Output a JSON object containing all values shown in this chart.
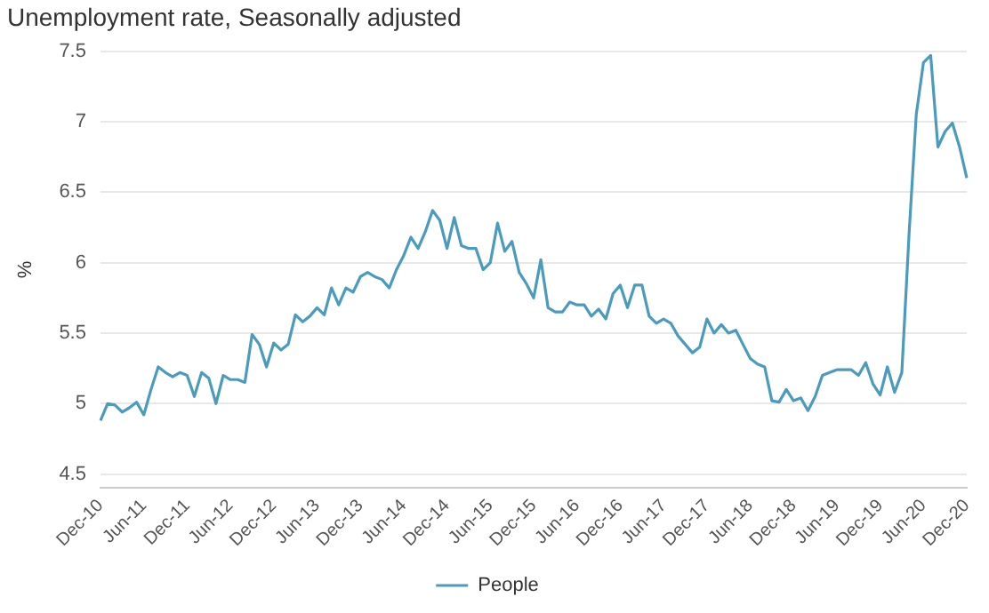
{
  "chart_data": {
    "type": "line",
    "title": "Unemployment rate, Seasonally adjusted",
    "ylabel": "%",
    "categories": [
      "Dec-10",
      null,
      null,
      null,
      null,
      null,
      "Jun-11",
      null,
      null,
      null,
      null,
      null,
      "Dec-11",
      null,
      null,
      null,
      null,
      null,
      "Jun-12",
      null,
      null,
      null,
      null,
      null,
      "Dec-12",
      null,
      null,
      null,
      null,
      null,
      "Jun-13",
      null,
      null,
      null,
      null,
      null,
      "Dec-13",
      null,
      null,
      null,
      null,
      null,
      "Jun-14",
      null,
      null,
      null,
      null,
      null,
      "Dec-14",
      null,
      null,
      null,
      null,
      null,
      "Jun-15",
      null,
      null,
      null,
      null,
      null,
      "Dec-15",
      null,
      null,
      null,
      null,
      null,
      "Jun-16",
      null,
      null,
      null,
      null,
      null,
      "Dec-16",
      null,
      null,
      null,
      null,
      null,
      "Jun-17",
      null,
      null,
      null,
      null,
      null,
      "Dec-17",
      null,
      null,
      null,
      null,
      null,
      "Jun-18",
      null,
      null,
      null,
      null,
      null,
      "Dec-18",
      null,
      null,
      null,
      null,
      null,
      "Jun-19",
      null,
      null,
      null,
      null,
      null,
      "Dec-19",
      null,
      null,
      null,
      null,
      null,
      "Jun-20",
      null,
      null,
      null,
      null,
      null,
      "Dec-20"
    ],
    "series": [
      {
        "name": "People",
        "color": "#4a9bbd",
        "values": [
          4.88,
          5.0,
          4.99,
          4.94,
          4.97,
          5.01,
          4.92,
          5.1,
          5.26,
          5.22,
          5.19,
          5.22,
          5.2,
          5.05,
          5.22,
          5.18,
          5.0,
          5.2,
          5.17,
          5.17,
          5.15,
          5.49,
          5.42,
          5.26,
          5.43,
          5.38,
          5.42,
          5.63,
          5.58,
          5.62,
          5.68,
          5.63,
          5.82,
          5.7,
          5.82,
          5.79,
          5.9,
          5.93,
          5.9,
          5.88,
          5.82,
          5.95,
          6.05,
          6.18,
          6.1,
          6.22,
          6.37,
          6.3,
          6.1,
          6.32,
          6.12,
          6.1,
          6.1,
          5.95,
          6.0,
          6.28,
          6.08,
          6.15,
          5.93,
          5.85,
          5.75,
          6.02,
          5.68,
          5.65,
          5.65,
          5.72,
          5.7,
          5.7,
          5.62,
          5.67,
          5.6,
          5.78,
          5.84,
          5.68,
          5.84,
          5.84,
          5.62,
          5.57,
          5.6,
          5.57,
          5.48,
          5.42,
          5.36,
          5.4,
          5.6,
          5.5,
          5.56,
          5.5,
          5.52,
          5.42,
          5.32,
          5.28,
          5.26,
          5.02,
          5.01,
          5.1,
          5.02,
          5.04,
          4.95,
          5.05,
          5.2,
          5.22,
          5.24,
          5.24,
          5.24,
          5.2,
          5.29,
          5.14,
          5.06,
          5.26,
          5.08,
          5.22,
          6.2,
          7.05,
          7.42,
          7.47,
          6.82,
          6.93,
          6.99,
          6.82,
          6.6
        ]
      }
    ],
    "ylim": [
      4.4,
      7.5
    ],
    "yticks": [
      4.5,
      5,
      5.5,
      6,
      6.5,
      7,
      7.5
    ],
    "grid": "y",
    "legend": "bottom",
    "marker": "none",
    "line_style": "solid"
  }
}
